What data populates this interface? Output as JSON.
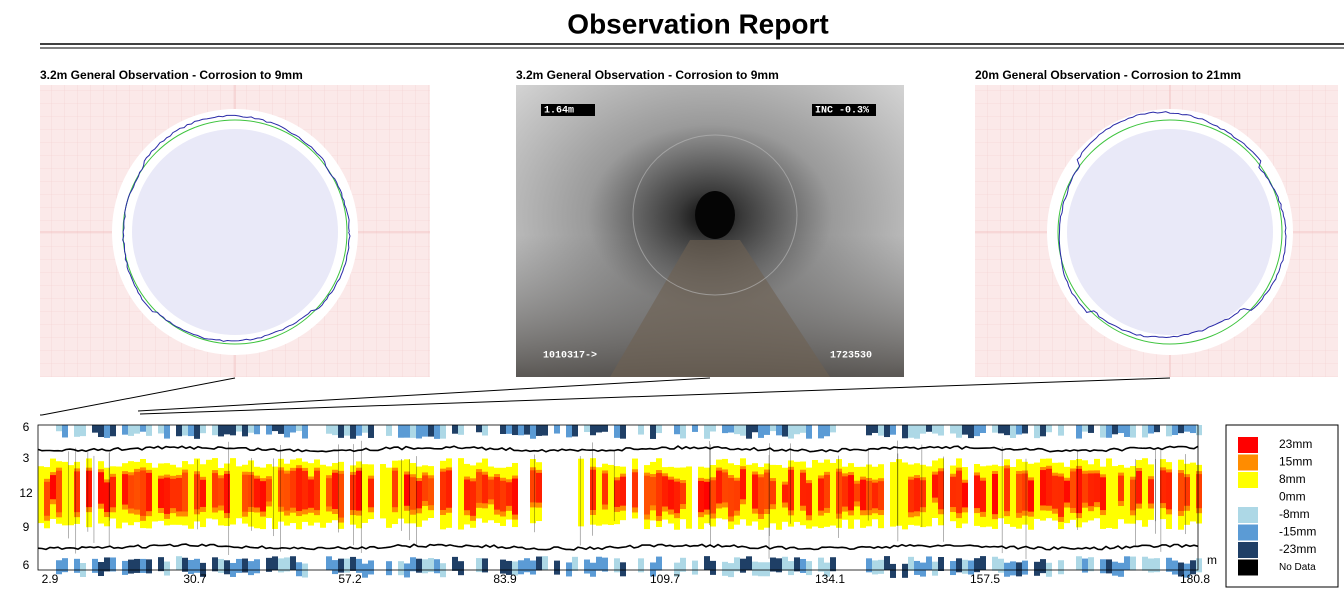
{
  "header": {
    "title": "Observation Report"
  },
  "panels": [
    {
      "caption": "3.2m General Observation - Corrosion to 9mm"
    },
    {
      "caption": "3.2m General Observation - Corrosion to 9mm",
      "overlay": [
        "1.64m",
        "INC -0.3%",
        "1010317->",
        "1723530"
      ]
    },
    {
      "caption": "20m General Observation - Corrosion to 21mm"
    }
  ],
  "strip": {
    "y_labels": [
      "6",
      "3",
      "12",
      "9",
      "6"
    ],
    "x_labels": [
      "2.9",
      "30.7",
      "57.2",
      "83.9",
      "109.7",
      "134.1",
      "157.5",
      "180.8"
    ],
    "unit": "m"
  },
  "legend": [
    {
      "label": "23mm",
      "color": "#ff0000"
    },
    {
      "label": "15mm",
      "color": "#ff8c00"
    },
    {
      "label": "8mm",
      "color": "#ffff00"
    },
    {
      "label": "0mm",
      "color": "#ffffff"
    },
    {
      "label": "-8mm",
      "color": "#add8e6"
    },
    {
      "label": "-15mm",
      "color": "#5b9bd5"
    },
    {
      "label": "-23mm",
      "color": "#1f3f66"
    },
    {
      "label": "No Data",
      "color": "#000000"
    }
  ]
}
